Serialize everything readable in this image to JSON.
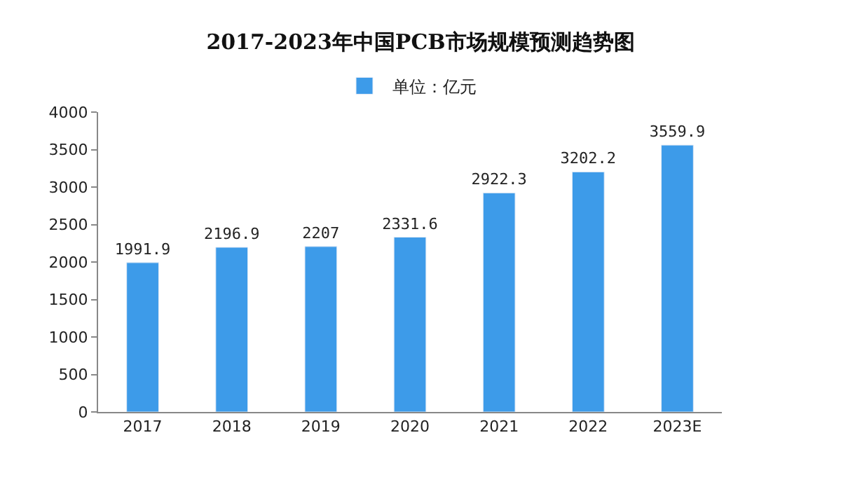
{
  "chart_data": {
    "type": "bar",
    "title": "2017-2023年中国PCB市场规模预测趋势图",
    "categories": [
      "2017",
      "2018",
      "2019",
      "2020",
      "2021",
      "2022",
      "2023E"
    ],
    "series": [
      {
        "name": "单位：亿元",
        "color": "#3d9be9",
        "values": [
          1991.9,
          2196.9,
          2207,
          2331.6,
          2922.3,
          3202.2,
          3559.9
        ]
      }
    ],
    "ylim": [
      0,
      4000
    ],
    "yticks": [
      0,
      500,
      1000,
      1500,
      2000,
      2500,
      3000,
      3500,
      4000
    ],
    "data_labels": true,
    "legend": "top"
  }
}
